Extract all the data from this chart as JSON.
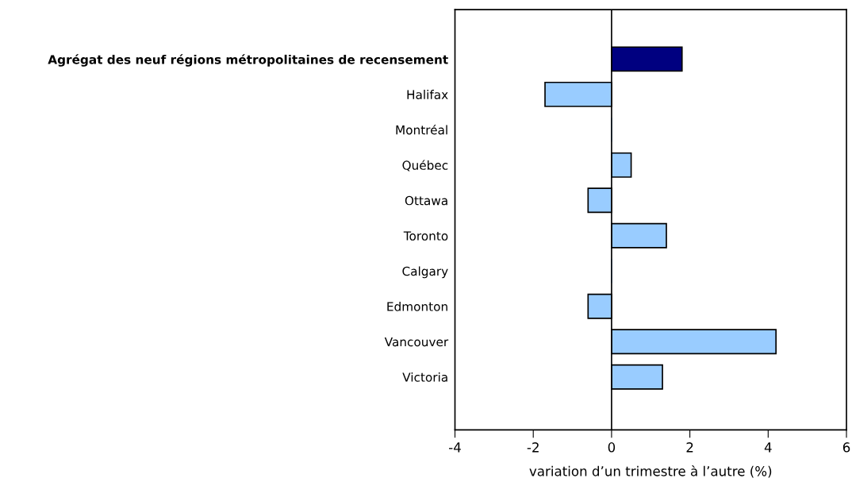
{
  "chart_data": {
    "type": "bar",
    "orientation": "horizontal",
    "xlabel": "variation d’un trimestre à l’autre (%)",
    "categories": [
      "Agrégat des neuf régions métropolitaines de recensement",
      "Halifax",
      "Montréal",
      "Québec",
      "Ottawa",
      "Toronto",
      "Calgary",
      "Edmonton",
      "Vancouver",
      "Victoria"
    ],
    "values": [
      1.8,
      -1.7,
      0,
      0.5,
      -0.6,
      1.4,
      0,
      -0.6,
      4.2,
      1.3
    ],
    "colors": [
      "#000080",
      "#99ccff",
      "#99ccff",
      "#99ccff",
      "#99ccff",
      "#99ccff",
      "#99ccff",
      "#99ccff",
      "#99ccff",
      "#99ccff"
    ],
    "xlim": [
      -4,
      6
    ],
    "xticks": [
      -4,
      -2,
      0,
      2,
      4,
      6
    ],
    "ref_lines": [
      {
        "axis": "x",
        "value": 0,
        "color": "#000000"
      }
    ],
    "grid": false,
    "legend": false
  }
}
